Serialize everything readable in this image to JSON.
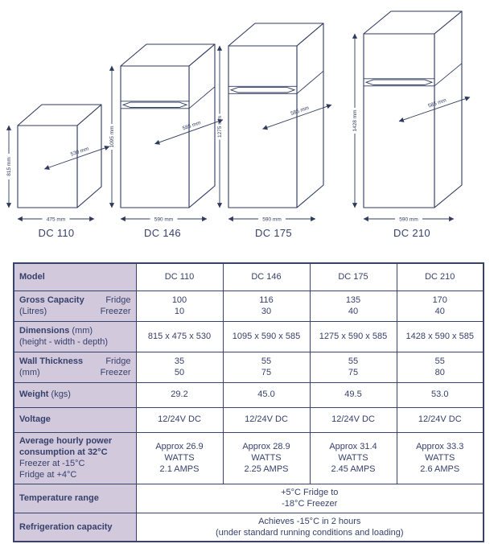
{
  "colors": {
    "navy_text": "#37406b",
    "line_navy": "#2f3a5f",
    "table_border": "#39426a",
    "label_cell_bg": "#d2c9dc",
    "page_bg": "#ffffff"
  },
  "figures": [
    {
      "model": "DC 110",
      "height": "815 mm",
      "width": "475 mm",
      "depth": "530 mm"
    },
    {
      "model": "DC 146",
      "height": "1095 mm",
      "width": "590 mm",
      "depth": "585 mm"
    },
    {
      "model": "DC 175",
      "height": "1275 mm",
      "width": "590 mm",
      "depth": "585 mm"
    },
    {
      "model": "DC 210",
      "height": "1428 mm",
      "width": "590 mm",
      "depth": "585 mm"
    }
  ],
  "table": {
    "model_row": {
      "label": "Model",
      "values": [
        "DC 110",
        "DC 146",
        "DC 175",
        "DC 210"
      ]
    },
    "gross_capacity": {
      "label": "Gross Capacity",
      "unit": "(Litres)",
      "row_labels": [
        "Fridge",
        "Freezer"
      ],
      "values": [
        [
          "100",
          "10"
        ],
        [
          "116",
          "30"
        ],
        [
          "135",
          "40"
        ],
        [
          "170",
          "40"
        ]
      ]
    },
    "dimensions": {
      "label": "Dimensions",
      "unit": "(mm)",
      "note": "(height - width - depth)",
      "values": [
        "815 x 475 x 530",
        "1095 x 590 x 585",
        "1275 x 590 x 585",
        "1428 x 590 x 585"
      ]
    },
    "wall_thickness": {
      "label": "Wall Thickness",
      "unit": "(mm)",
      "row_labels": [
        "Fridge",
        "Freezer"
      ],
      "values": [
        [
          "35",
          "50"
        ],
        [
          "55",
          "75"
        ],
        [
          "55",
          "75"
        ],
        [
          "55",
          "80"
        ]
      ]
    },
    "weight": {
      "label": "Weight",
      "unit": "(kgs)",
      "values": [
        "29.2",
        "45.0",
        "49.5",
        "53.0"
      ]
    },
    "voltage": {
      "label": "Voltage",
      "values": [
        "12/24V DC",
        "12/24V DC",
        "12/24V DC",
        "12/24V DC"
      ]
    },
    "power": {
      "label_line1": "Average hourly power",
      "label_line2": "consumption at 32°C",
      "note_line1": "Freezer at -15°C",
      "note_line2": "Fridge at +4°C",
      "values": [
        [
          "Approx 26.9 WATTS",
          "2.1 AMPS"
        ],
        [
          "Approx 28.9 WATTS",
          "2.25 AMPS"
        ],
        [
          "Approx 31.4 WATTS",
          "2.45 AMPS"
        ],
        [
          "Approx 33.3 WATTS",
          "2.6 AMPS"
        ]
      ]
    },
    "temperature_range": {
      "label": "Temperature range",
      "value_line1": "+5°C Fridge to",
      "value_line2": "-18°C Freezer"
    },
    "refrigeration_capacity": {
      "label": "Refrigeration capacity",
      "value_line1": "Achieves -15°C in 2 hours",
      "value_line2": "(under standard running conditions and loading)"
    }
  }
}
